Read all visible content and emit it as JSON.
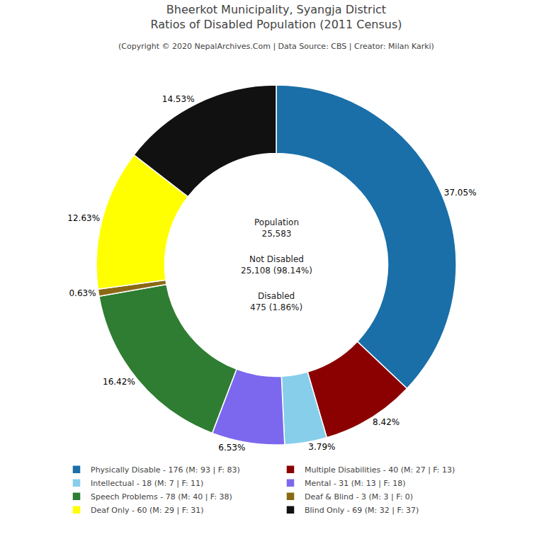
{
  "chart_data": {
    "type": "pie",
    "title": "Bheerkot Municipality, Syangja District\nRatios of Disabled Population (2011 Census)",
    "subtitle": "(Copyright © 2020 NepalArchives.Com | Data Source: CBS | Creator: Milan Karki)",
    "categories": [
      "Physically Disable - 176 (M: 93 | F: 83)",
      "Multiple Disabilities - 40 (M: 27 | F: 13)",
      "Intellectual - 18 (M: 7 | F: 11)",
      "Mental - 31 (M: 13 | F: 18)",
      "Speech Problems - 78 (M: 40 | F: 38)",
      "Deaf & Blind - 3 (M: 3 | F: 0)",
      "Deaf Only - 60 (M: 29 | F: 31)",
      "Blind Only - 69 (M: 32 | F: 37)"
    ],
    "values": [
      37.05,
      8.42,
      3.79,
      6.53,
      16.42,
      0.63,
      12.63,
      14.53
    ],
    "value_labels": [
      "37.05%",
      "8.42%",
      "3.79%",
      "6.53%",
      "16.42%",
      "0.63%",
      "12.63%",
      "14.53%"
    ],
    "colors": [
      "#1a6fa8",
      "#8b0000",
      "#87ceeb",
      "#7b68ee",
      "#2e7d32",
      "#8B6914",
      "#ffff00",
      "#111111"
    ],
    "data_labels": true,
    "legend": "bottom",
    "annotations": [
      "Population\n25,583",
      "Not Disabled\n25,108 (98.14%)",
      "Disabled\n475 (1.86%)"
    ]
  }
}
